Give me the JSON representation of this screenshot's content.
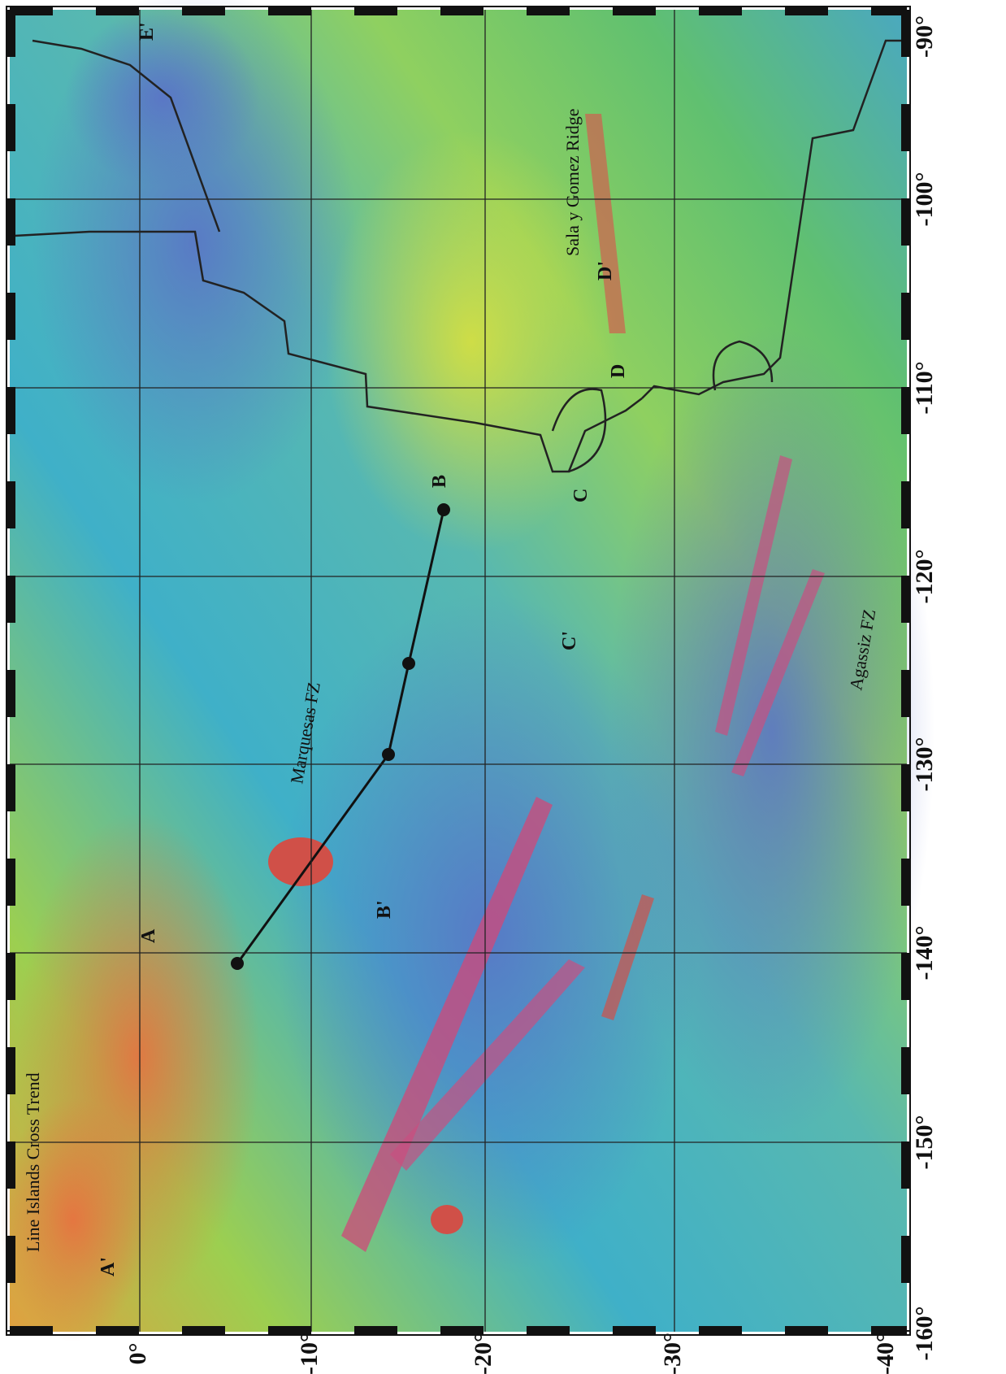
{
  "map": {
    "longitude_labels": [
      "-160°",
      "-150°",
      "-140°",
      "-130°",
      "-120°",
      "-110°",
      "-100°",
      "-90°"
    ],
    "latitude_labels": [
      "0°",
      "-10°",
      "-20°",
      "-30°",
      "-40°"
    ],
    "features": [
      "Line Islands Cross Trend",
      "Marquesas FZ",
      "Sala y Gomez Ridge",
      "Agassiz FZ"
    ],
    "points": [
      "A",
      "A'",
      "B",
      "B'",
      "C",
      "C'",
      "D",
      "D'",
      "E'"
    ]
  }
}
